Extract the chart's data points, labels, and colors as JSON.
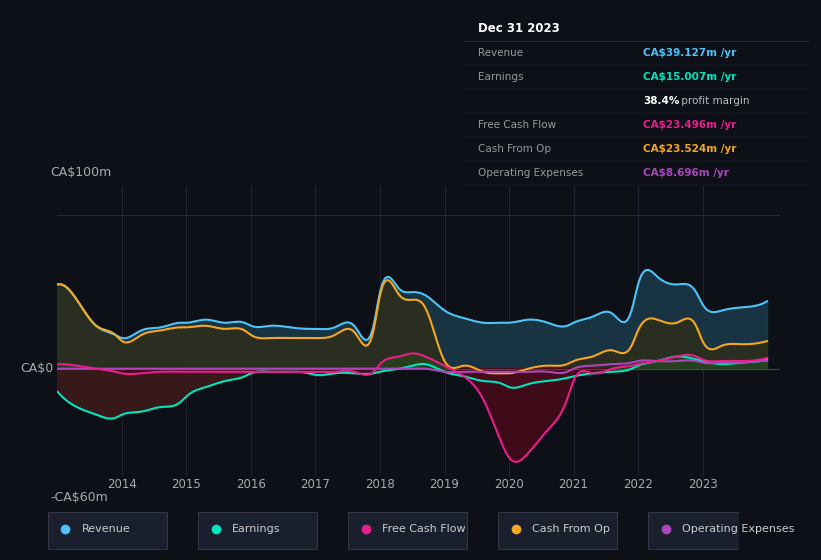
{
  "background_color": "#0d1117",
  "plot_bg_color": "#161b22",
  "title": "Dec 31 2023",
  "info_box": {
    "title": "Dec 31 2023",
    "rows": [
      {
        "label": "Revenue",
        "value": "CA$39.127m /yr",
        "value_color": "#4fc3f7"
      },
      {
        "label": "Earnings",
        "value": "CA$15.007m /yr",
        "value_color": "#00e5c0"
      },
      {
        "label": "",
        "value": "38.4% profit margin",
        "value_color": "#ffffff",
        "bold_part": "38.4%"
      },
      {
        "label": "Free Cash Flow",
        "value": "CA$23.496m /yr",
        "value_color": "#e91e8c"
      },
      {
        "label": "Cash From Op",
        "value": "CA$23.524m /yr",
        "value_color": "#f5a623"
      },
      {
        "label": "Operating Expenses",
        "value": "CA$8.696m /yr",
        "value_color": "#ab47bc"
      }
    ]
  },
  "ylabel_top": "CA$100m",
  "ylabel_bottom": "-CA$60m",
  "x_min": 2013.0,
  "x_max": 2024.2,
  "y_min": -70,
  "y_max": 120,
  "y_zero": 0,
  "x_ticks": [
    2014,
    2015,
    2016,
    2017,
    2018,
    2019,
    2020,
    2021,
    2022,
    2023
  ],
  "legend_entries": [
    {
      "label": "Revenue",
      "color": "#4fc3f7"
    },
    {
      "label": "Earnings",
      "color": "#00e5c0"
    },
    {
      "label": "Free Cash Flow",
      "color": "#e91e8c"
    },
    {
      "label": "Cash From Op",
      "color": "#f5a623"
    },
    {
      "label": "Operating Expenses",
      "color": "#ab47bc"
    }
  ],
  "series": {
    "x": [
      2013.0,
      2013.3,
      2013.6,
      2013.9,
      2014.0,
      2014.3,
      2014.6,
      2014.9,
      2015.0,
      2015.3,
      2015.6,
      2015.9,
      2016.0,
      2016.3,
      2016.6,
      2016.9,
      2017.0,
      2017.3,
      2017.6,
      2017.9,
      2018.0,
      2018.3,
      2018.5,
      2018.7,
      2019.0,
      2019.3,
      2019.6,
      2019.9,
      2020.0,
      2020.3,
      2020.6,
      2020.9,
      2021.0,
      2021.3,
      2021.6,
      2021.9,
      2022.0,
      2022.3,
      2022.6,
      2022.9,
      2023.0,
      2023.3,
      2023.6,
      2023.9,
      2024.0
    ],
    "revenue": [
      55,
      45,
      28,
      22,
      20,
      25,
      27,
      30,
      30,
      32,
      30,
      30,
      28,
      28,
      27,
      26,
      26,
      27,
      28,
      28,
      50,
      52,
      50,
      48,
      38,
      33,
      30,
      30,
      30,
      32,
      30,
      28,
      30,
      34,
      36,
      38,
      55,
      60,
      55,
      50,
      42,
      38,
      40,
      42,
      44
    ],
    "earnings": [
      -15,
      -25,
      -30,
      -32,
      -30,
      -28,
      -25,
      -22,
      -18,
      -12,
      -8,
      -5,
      -3,
      -2,
      -2,
      -3,
      -4,
      -3,
      -3,
      -3,
      -2,
      0,
      2,
      3,
      -2,
      -5,
      -8,
      -10,
      -12,
      -10,
      -8,
      -6,
      -5,
      -3,
      -2,
      0,
      2,
      5,
      8,
      6,
      5,
      3,
      4,
      5,
      6
    ],
    "free_cash_flow": [
      3,
      2,
      0,
      -2,
      -3,
      -3,
      -2,
      -2,
      -2,
      -2,
      -2,
      -2,
      -2,
      -2,
      -2,
      -2,
      -2,
      -2,
      -2,
      -2,
      3,
      8,
      10,
      8,
      2,
      -5,
      -20,
      -50,
      -58,
      -55,
      -40,
      -20,
      -8,
      -3,
      0,
      2,
      3,
      5,
      8,
      8,
      6,
      5,
      5,
      6,
      7
    ],
    "cash_from_op": [
      55,
      45,
      28,
      22,
      18,
      22,
      25,
      27,
      27,
      28,
      26,
      25,
      22,
      20,
      20,
      20,
      20,
      22,
      24,
      25,
      48,
      48,
      45,
      40,
      5,
      2,
      -2,
      -3,
      -3,
      0,
      2,
      3,
      5,
      8,
      12,
      15,
      25,
      32,
      30,
      28,
      18,
      15,
      16,
      17,
      18
    ],
    "op_expenses": [
      0,
      0,
      0,
      0,
      0,
      0,
      0,
      0,
      0,
      0,
      0,
      0,
      0,
      0,
      0,
      0,
      0,
      0,
      0,
      0,
      0,
      0,
      0,
      0,
      -2,
      -2,
      -2,
      -2,
      -2,
      -2,
      -2,
      -2,
      0,
      2,
      3,
      4,
      5,
      5,
      5,
      5,
      4,
      4,
      4,
      5,
      5
    ]
  }
}
